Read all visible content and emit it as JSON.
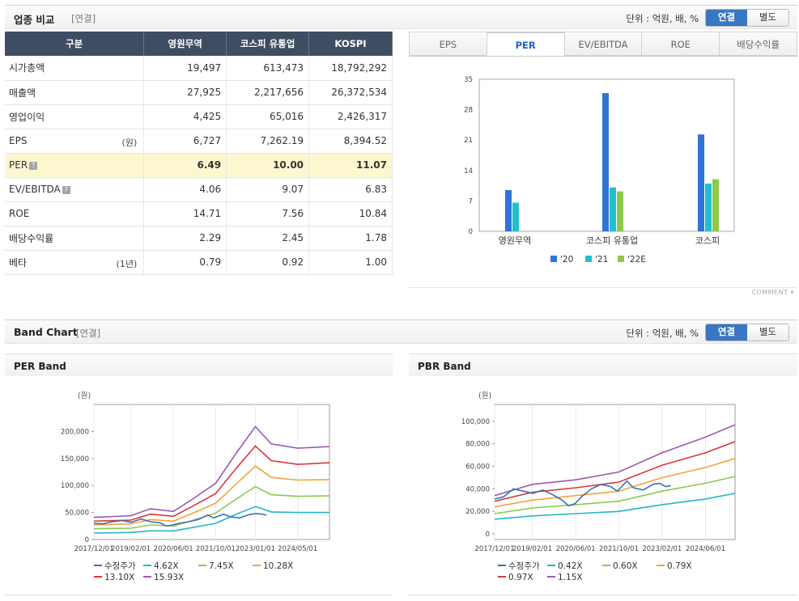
{
  "compare": {
    "title": "업종 비교",
    "basis": "[연결]",
    "unit": "단위 : 억원, 배, %",
    "toggle": {
      "consolidated": "연결",
      "separate": "별도"
    },
    "columns": [
      "구분",
      "영원무역",
      "코스피 유통업",
      "KOSPI"
    ],
    "rows": [
      {
        "label": "시가총액",
        "note": "",
        "values": [
          "19,497",
          "613,473",
          "18,792,292"
        ]
      },
      {
        "label": "매출액",
        "note": "",
        "values": [
          "27,925",
          "2,217,656",
          "26,372,534"
        ]
      },
      {
        "label": "영업이익",
        "note": "",
        "values": [
          "4,425",
          "65,016",
          "2,426,317"
        ]
      },
      {
        "label": "EPS",
        "note": "(원)",
        "values": [
          "6,727",
          "7,262.19",
          "8,394.52"
        ]
      },
      {
        "label": "PER",
        "note": "",
        "values": [
          "6.49",
          "10.00",
          "11.07"
        ]
      },
      {
        "label": "EV/EBITDA",
        "note": "",
        "values": [
          "4.06",
          "9.07",
          "6.83"
        ]
      },
      {
        "label": "ROE",
        "note": "",
        "values": [
          "14.71",
          "7.56",
          "10.84"
        ]
      },
      {
        "label": "배당수익률",
        "note": "",
        "values": [
          "2.29",
          "2.45",
          "1.78"
        ]
      },
      {
        "label": "베타",
        "note": "(1년)",
        "values": [
          "0.79",
          "0.92",
          "1.00"
        ]
      }
    ],
    "tabs": [
      "EPS",
      "PER",
      "EV/EBITDA",
      "ROE",
      "배당수익률"
    ],
    "active_tab": "PER",
    "comment": "COMMENT ▾"
  },
  "band": {
    "title": "Band Chart",
    "basis": "[연결]",
    "unit": "단위 : 억원, 배, %",
    "toggle": {
      "consolidated": "연결",
      "separate": "별도"
    }
  },
  "colors": {
    "header_bg": "#3f4d63",
    "accent": "#3a76c4",
    "bar20": "#2e74d9",
    "bar21": "#1ebfd0",
    "bar22": "#8cc94a"
  },
  "chart_data": [
    {
      "type": "bar",
      "title": "PER",
      "categories": [
        "영원무역",
        "코스피 유통업",
        "코스피"
      ],
      "series": [
        {
          "name": "'20",
          "values": [
            9.5,
            31.8,
            22.3
          ]
        },
        {
          "name": "'21",
          "values": [
            6.6,
            10.1,
            11.0
          ]
        },
        {
          "name": "'22E",
          "values": [
            null,
            9.2,
            12.0
          ]
        }
      ],
      "yticks": [
        0,
        7,
        14,
        21,
        28,
        35
      ],
      "ylim": [
        0,
        35
      ]
    },
    {
      "type": "line",
      "title": "PER Band",
      "yunit": "(원)",
      "ylim": [
        0,
        250000
      ],
      "yticks": [
        0,
        50000,
        100000,
        150000,
        200000
      ],
      "ytick_labels": [
        "0",
        "50,000",
        "100,000",
        "150,000",
        "200,000"
      ],
      "xlim": [
        2017.92,
        2025.33
      ],
      "xticks": [
        2017.92,
        2019.08,
        2020.42,
        2021.75,
        2023.0,
        2024.33
      ],
      "xtick_labels": [
        "2017/12/01",
        "2019/02/01",
        "2020/06/01",
        "2021/10/01",
        "2023/01/01",
        "2024/05/01"
      ],
      "series": [
        {
          "name": "수정주가",
          "color": "#3c6fb6",
          "x": [
            2017.92,
            2018.2,
            2018.5,
            2018.8,
            2019.1,
            2019.4,
            2019.7,
            2020.0,
            2020.2,
            2020.4,
            2020.6,
            2020.9,
            2021.2,
            2021.5,
            2021.7,
            2022.0,
            2022.2,
            2022.5,
            2022.8,
            2023.0,
            2023.2,
            2023.35
          ],
          "y": [
            30000,
            29000,
            33000,
            35000,
            32000,
            38000,
            33000,
            31000,
            25000,
            27000,
            30000,
            33000,
            37000,
            45000,
            40000,
            47000,
            42000,
            40000,
            46000,
            48000,
            47000,
            45000
          ]
        },
        {
          "name": "4.62X",
          "color": "#25b5c8",
          "x": [
            2017.92,
            2019.08,
            2019.7,
            2020.42,
            2021.0,
            2021.75,
            2022.4,
            2023.0,
            2023.5,
            2024.33,
            2025.33
          ],
          "y": [
            12000,
            13000,
            16000,
            16000,
            22000,
            30000,
            47000,
            61000,
            51000,
            50000,
            50000
          ]
        },
        {
          "name": "7.45X",
          "color": "#8cc94a",
          "x": [
            2017.92,
            2019.08,
            2019.7,
            2020.42,
            2021.0,
            2021.75,
            2022.4,
            2023.0,
            2023.5,
            2024.33,
            2025.33
          ],
          "y": [
            20000,
            21000,
            27000,
            25000,
            35000,
            49000,
            75000,
            98000,
            83000,
            80000,
            81000
          ]
        },
        {
          "name": "10.28X",
          "color": "#f2a33a",
          "x": [
            2017.92,
            2019.08,
            2019.7,
            2020.42,
            2021.0,
            2021.75,
            2022.4,
            2023.0,
            2023.5,
            2024.33,
            2025.33
          ],
          "y": [
            27000,
            29000,
            37000,
            34000,
            48000,
            67000,
            103000,
            136000,
            115000,
            110000,
            111000
          ]
        },
        {
          "name": "13.10X",
          "color": "#d7373c",
          "x": [
            2017.92,
            2019.08,
            2019.7,
            2020.42,
            2021.0,
            2021.75,
            2022.4,
            2023.0,
            2023.5,
            2024.33,
            2025.33
          ],
          "y": [
            34000,
            36000,
            47000,
            43000,
            61000,
            85000,
            132000,
            173000,
            146000,
            139000,
            142000
          ]
        },
        {
          "name": "15.93X",
          "color": "#9b59b6",
          "x": [
            2017.92,
            2019.08,
            2019.7,
            2020.42,
            2021.0,
            2021.75,
            2022.4,
            2023.0,
            2023.5,
            2024.33,
            2025.33
          ],
          "y": [
            41000,
            44000,
            57000,
            52000,
            74000,
            104000,
            160000,
            209000,
            177000,
            169000,
            172000
          ]
        }
      ]
    },
    {
      "type": "line",
      "title": "PBR Band",
      "yunit": "(원)",
      "ylim": [
        -5000,
        115000
      ],
      "yticks": [
        0,
        20000,
        40000,
        60000,
        80000,
        100000
      ],
      "ytick_labels": [
        "0",
        "20,000",
        "40,000",
        "60,000",
        "80,000",
        "100,000"
      ],
      "xlim": [
        2017.92,
        2025.33
      ],
      "xticks": [
        2017.92,
        2019.08,
        2020.42,
        2021.75,
        2023.08,
        2024.42
      ],
      "xtick_labels": [
        "2017/12/01",
        "2019/02/01",
        "2020/06/01",
        "2021/10/01",
        "2023/02/01",
        "2024/06/01"
      ],
      "series": [
        {
          "name": "수정주가",
          "color": "#3c6fb6",
          "x": [
            2017.92,
            2018.2,
            2018.5,
            2018.8,
            2019.1,
            2019.4,
            2019.7,
            2020.0,
            2020.2,
            2020.4,
            2020.6,
            2020.9,
            2021.2,
            2021.5,
            2021.7,
            2022.0,
            2022.2,
            2022.5,
            2022.8,
            2023.0,
            2023.2,
            2023.35
          ],
          "y": [
            31000,
            33000,
            40000,
            38000,
            36000,
            39000,
            35000,
            30000,
            25000,
            27000,
            33000,
            40000,
            44000,
            42000,
            38000,
            47000,
            41000,
            39000,
            44000,
            45000,
            42000,
            43000
          ]
        },
        {
          "name": "0.42X",
          "color": "#25b5c8",
          "x": [
            2017.92,
            2019.08,
            2020.42,
            2021.75,
            2023.08,
            2024.42,
            2025.33
          ],
          "y": [
            13000,
            16000,
            18000,
            20000,
            26000,
            31000,
            36000
          ]
        },
        {
          "name": "0.60X",
          "color": "#8cc94a",
          "x": [
            2017.92,
            2019.08,
            2020.42,
            2021.75,
            2023.08,
            2024.42,
            2025.33
          ],
          "y": [
            18000,
            23000,
            26000,
            29000,
            38000,
            45000,
            51000
          ]
        },
        {
          "name": "0.79X",
          "color": "#f2a33a",
          "x": [
            2017.92,
            2019.08,
            2020.42,
            2021.75,
            2023.08,
            2024.42,
            2025.33
          ],
          "y": [
            24000,
            30000,
            34000,
            38000,
            50000,
            59000,
            67000
          ]
        },
        {
          "name": "0.97X",
          "color": "#d7373c",
          "x": [
            2017.92,
            2019.08,
            2020.42,
            2021.75,
            2023.08,
            2024.42,
            2025.33
          ],
          "y": [
            29000,
            37000,
            41000,
            46000,
            61000,
            72000,
            82000
          ]
        },
        {
          "name": "1.15X",
          "color": "#9b59b6",
          "x": [
            2017.92,
            2019.08,
            2020.42,
            2021.75,
            2023.08,
            2024.42,
            2025.33
          ],
          "y": [
            34000,
            44000,
            48000,
            55000,
            72000,
            86000,
            97000
          ]
        }
      ]
    }
  ]
}
